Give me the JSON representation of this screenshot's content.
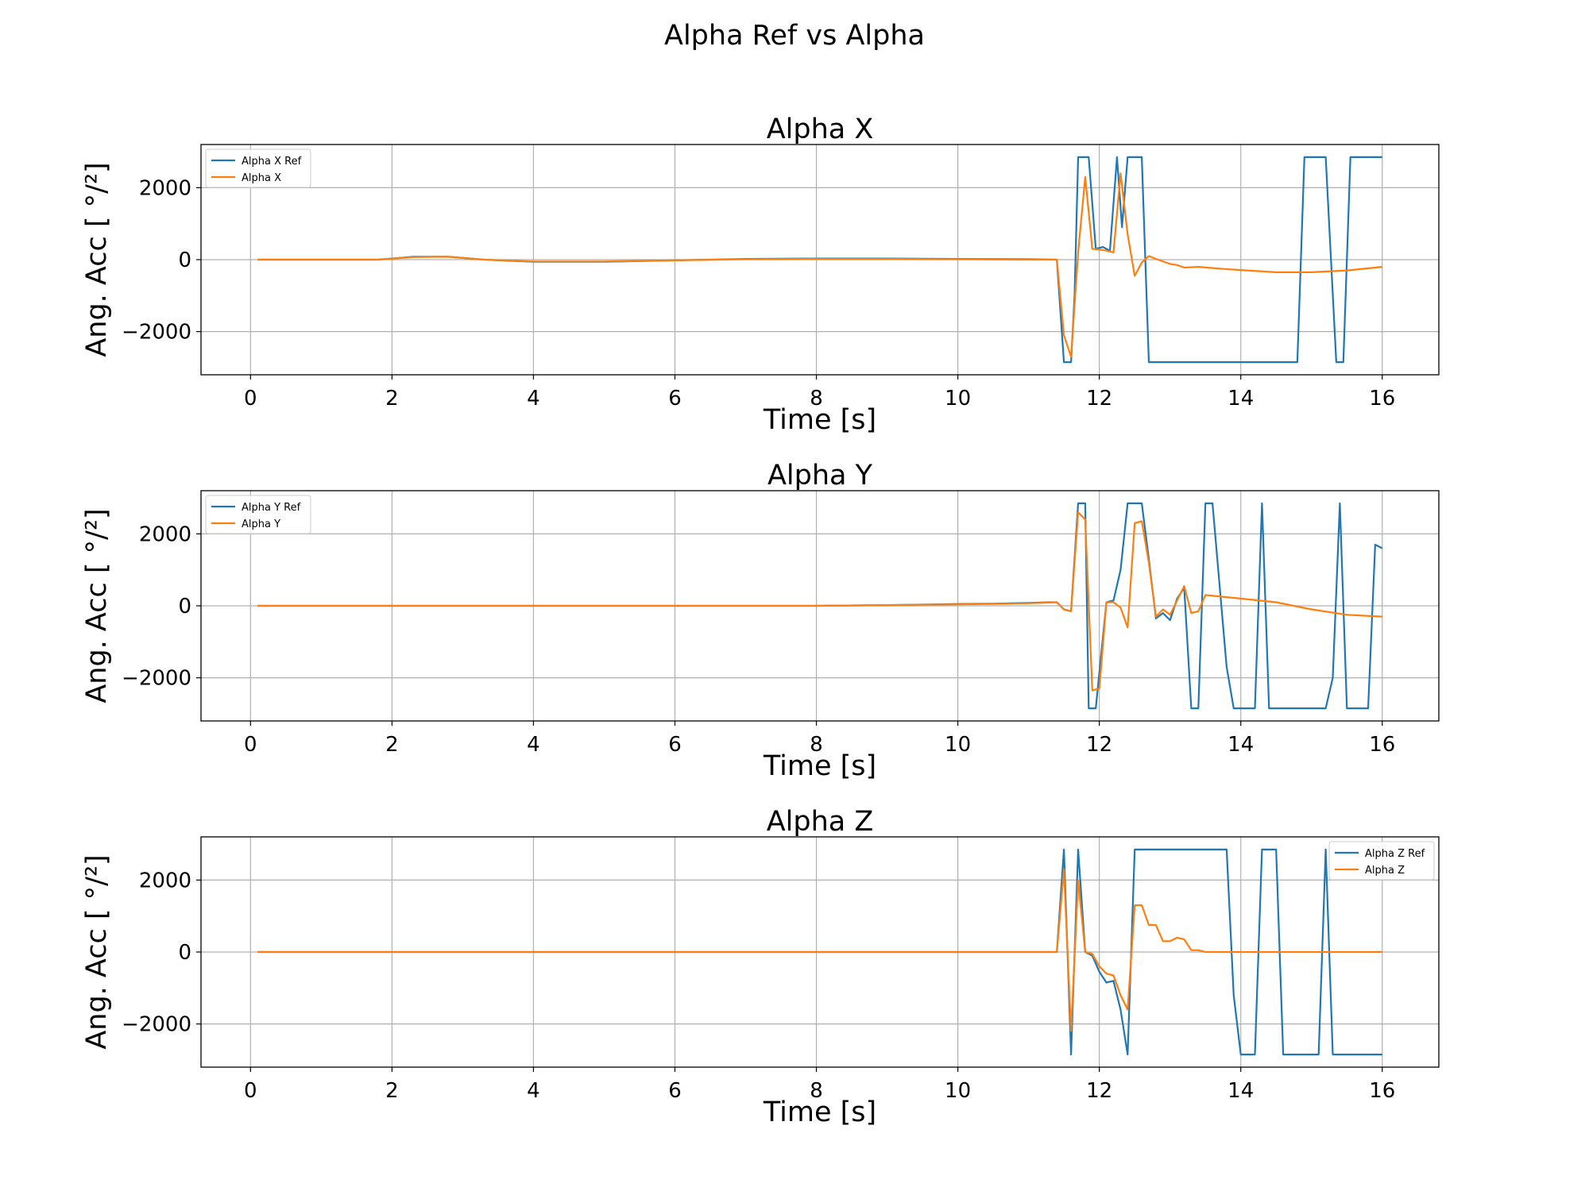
{
  "figure": {
    "suptitle": "Alpha Ref vs Alpha"
  },
  "colors": {
    "ref": "#1f77b4",
    "actual": "#ff7f0e",
    "grid": "#b0b0b0"
  },
  "chart_data": [
    {
      "type": "line",
      "title": "Alpha X",
      "xlabel": "Time [s]",
      "ylabel": "Ang. Acc [ °/²]",
      "xlim": [
        -0.7,
        16.8
      ],
      "ylim": [
        -3200,
        3200
      ],
      "xticks": [
        0,
        2,
        4,
        6,
        8,
        10,
        12,
        14,
        16
      ],
      "yticks": [
        -2000,
        0,
        2000
      ],
      "grid": true,
      "legend_position": "upper left",
      "series": [
        {
          "name": "Alpha X Ref",
          "color": "#1f77b4",
          "x": [
            0.1,
            1.8,
            2.3,
            2.8,
            3.3,
            4.0,
            5.0,
            6.0,
            7.0,
            8.0,
            9.0,
            10.0,
            11.0,
            11.4,
            11.5,
            11.6,
            11.65,
            11.7,
            11.75,
            11.85,
            11.95,
            12.05,
            12.15,
            12.25,
            12.32,
            12.4,
            12.5,
            12.6,
            12.7,
            14.8,
            14.9,
            15.2,
            15.35,
            15.45,
            15.55,
            16.0
          ],
          "y": [
            0,
            0,
            80,
            80,
            0,
            -60,
            -60,
            -20,
            20,
            30,
            30,
            20,
            10,
            0,
            -2850,
            -2850,
            -1000,
            2850,
            2850,
            2850,
            300,
            350,
            250,
            2850,
            900,
            2850,
            2850,
            2850,
            -2850,
            -2850,
            2850,
            2850,
            -2850,
            -2850,
            2850,
            2850
          ]
        },
        {
          "name": "Alpha X",
          "color": "#ff7f0e",
          "x": [
            0.1,
            1.8,
            2.3,
            2.8,
            3.3,
            4.0,
            5.0,
            6.0,
            7.0,
            8.0,
            9.0,
            10.0,
            11.0,
            11.4,
            11.5,
            11.6,
            11.7,
            11.8,
            11.9,
            12.0,
            12.1,
            12.2,
            12.3,
            12.4,
            12.5,
            12.6,
            12.7,
            12.8,
            13.0,
            13.1,
            13.2,
            13.4,
            13.7,
            14.0,
            14.5,
            15.0,
            15.5,
            16.0
          ],
          "y": [
            0,
            0,
            70,
            80,
            0,
            -50,
            -50,
            -20,
            10,
            20,
            20,
            10,
            0,
            0,
            -2100,
            -2700,
            200,
            2300,
            300,
            280,
            250,
            200,
            2400,
            700,
            -450,
            -80,
            100,
            20,
            -120,
            -150,
            -220,
            -200,
            -250,
            -290,
            -350,
            -350,
            -300,
            -200
          ]
        }
      ]
    },
    {
      "type": "line",
      "title": "Alpha Y",
      "xlabel": "Time [s]",
      "ylabel": "Ang. Acc [ °/²]",
      "xlim": [
        -0.7,
        16.8
      ],
      "ylim": [
        -3200,
        3200
      ],
      "xticks": [
        0,
        2,
        4,
        6,
        8,
        10,
        12,
        14,
        16
      ],
      "yticks": [
        -2000,
        0,
        2000
      ],
      "grid": true,
      "legend_position": "upper left",
      "series": [
        {
          "name": "Alpha Y Ref",
          "color": "#1f77b4",
          "x": [
            0.1,
            6.0,
            8.0,
            9.0,
            10.0,
            10.5,
            11.0,
            11.3,
            11.4,
            11.5,
            11.6,
            11.7,
            11.8,
            11.85,
            11.95,
            12.1,
            12.2,
            12.3,
            12.4,
            12.6,
            12.7,
            12.8,
            12.9,
            13.0,
            13.1,
            13.2,
            13.3,
            13.4,
            13.5,
            13.6,
            13.8,
            13.9,
            14.2,
            14.3,
            14.4,
            15.2,
            15.3,
            15.4,
            15.5,
            15.8,
            15.9,
            16.0
          ],
          "y": [
            0,
            0,
            0,
            20,
            50,
            60,
            80,
            100,
            100,
            -100,
            -150,
            2850,
            2850,
            -2850,
            -2850,
            100,
            150,
            1000,
            2850,
            2850,
            1300,
            -350,
            -200,
            -400,
            200,
            500,
            -2850,
            -2850,
            2850,
            2850,
            -1700,
            -2850,
            -2850,
            2850,
            -2850,
            -2850,
            -2000,
            2850,
            -2850,
            -2850,
            1700,
            1600
          ]
        },
        {
          "name": "Alpha Y",
          "color": "#ff7f0e",
          "x": [
            0.1,
            6.0,
            8.0,
            9.0,
            10.0,
            10.5,
            11.0,
            11.3,
            11.4,
            11.5,
            11.6,
            11.7,
            11.8,
            11.9,
            12.0,
            12.1,
            12.2,
            12.3,
            12.4,
            12.5,
            12.6,
            12.7,
            12.8,
            12.9,
            13.0,
            13.1,
            13.2,
            13.3,
            13.4,
            13.5,
            14.0,
            14.5,
            15.0,
            15.5,
            16.0
          ],
          "y": [
            0,
            0,
            0,
            20,
            40,
            50,
            70,
            90,
            100,
            -100,
            -150,
            2600,
            2400,
            -2350,
            -2300,
            100,
            100,
            -50,
            -600,
            2300,
            2350,
            1200,
            -300,
            -100,
            -250,
            150,
            550,
            -200,
            -150,
            300,
            200,
            100,
            -100,
            -250,
            -300
          ]
        }
      ]
    },
    {
      "type": "line",
      "title": "Alpha Z",
      "xlabel": "Time [s]",
      "ylabel": "Ang. Acc [ °/²]",
      "xlim": [
        -0.7,
        16.8
      ],
      "ylim": [
        -3200,
        3200
      ],
      "xticks": [
        0,
        2,
        4,
        6,
        8,
        10,
        12,
        14,
        16
      ],
      "yticks": [
        -2000,
        0,
        2000
      ],
      "grid": true,
      "legend_position": "upper right",
      "series": [
        {
          "name": "Alpha Z Ref",
          "color": "#1f77b4",
          "x": [
            0.1,
            11.0,
            11.4,
            11.5,
            11.6,
            11.7,
            11.8,
            11.9,
            12.0,
            12.1,
            12.2,
            12.3,
            12.4,
            12.5,
            13.8,
            13.9,
            14.0,
            14.2,
            14.3,
            14.5,
            14.6,
            15.1,
            15.2,
            15.3,
            16.0
          ],
          "y": [
            0,
            0,
            0,
            2850,
            -2850,
            2850,
            0,
            -100,
            -550,
            -850,
            -800,
            -1600,
            -2850,
            2850,
            2850,
            -1200,
            -2850,
            -2850,
            2850,
            2850,
            -2850,
            -2850,
            2850,
            -2850,
            -2850
          ]
        },
        {
          "name": "Alpha Z",
          "color": "#ff7f0e",
          "x": [
            0.1,
            11.0,
            11.4,
            11.5,
            11.6,
            11.7,
            11.8,
            11.9,
            12.0,
            12.1,
            12.2,
            12.3,
            12.4,
            12.5,
            12.6,
            12.7,
            12.8,
            12.9,
            13.0,
            13.1,
            13.2,
            13.3,
            13.4,
            13.5,
            14.0,
            15.0,
            16.0
          ],
          "y": [
            0,
            0,
            0,
            2300,
            -2200,
            2000,
            0,
            -50,
            -400,
            -600,
            -650,
            -1200,
            -1600,
            1300,
            1300,
            750,
            750,
            300,
            300,
            400,
            350,
            50,
            50,
            0,
            0,
            0,
            0
          ]
        }
      ]
    }
  ]
}
